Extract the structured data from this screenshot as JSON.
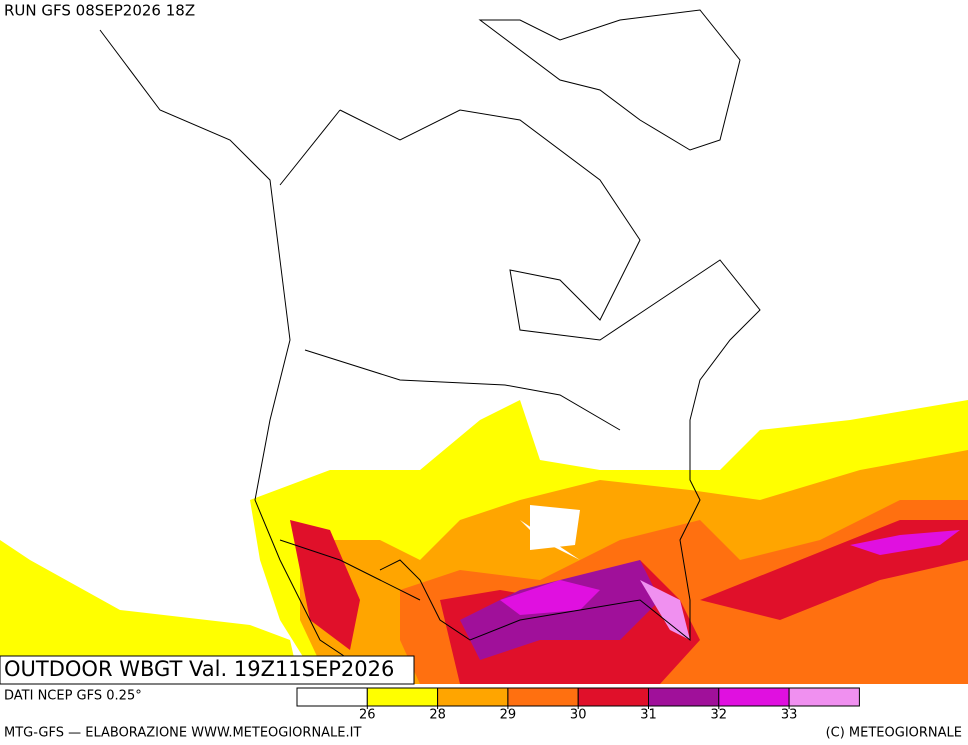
{
  "header": {
    "run": "RUN GFS 08SEP2026 18Z",
    "product": "OUTDOOR WBGT Val. 19Z11SEP2026"
  },
  "footer": {
    "source": "DATI NCEP GFS 0.25°",
    "credit": "MTG-GFS — ELABORAZIONE WWW.METEOGIORNALE.IT",
    "copyright": "(C) METEOGIORNALE"
  },
  "legend": {
    "colors": [
      "#ffffff",
      "#ffff00",
      "#ffa500",
      "#ff7010",
      "#e0102a",
      "#a0109a",
      "#e010e0",
      "#f090f0"
    ],
    "ticks": [
      26,
      28,
      29,
      30,
      31,
      32,
      33
    ]
  }
}
